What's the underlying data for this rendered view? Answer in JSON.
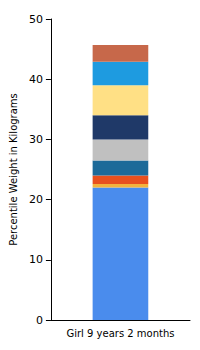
{
  "chart_data": {
    "type": "bar",
    "stacked": true,
    "y_label": "Percentile Weight in Kilograms",
    "categories": [
      "Girl 9 years 2 months"
    ],
    "series": [
      {
        "color": "#4a8ced",
        "values": [
          22
        ]
      },
      {
        "color": "#f2b33d",
        "values": [
          0.6
        ]
      },
      {
        "color": "#e8501e",
        "values": [
          1.4
        ]
      },
      {
        "color": "#1c6a99",
        "values": [
          2.5
        ]
      },
      {
        "color": "#c0c0c0",
        "values": [
          3.5
        ]
      },
      {
        "color": "#1f3968",
        "values": [
          4
        ]
      },
      {
        "color": "#ffe085",
        "values": [
          5
        ]
      },
      {
        "color": "#1e9be0",
        "values": [
          3.9
        ]
      },
      {
        "color": "#c7684a",
        "values": [
          2.8
        ]
      }
    ],
    "ylim": [
      0,
      50
    ],
    "yticks": [
      0,
      10,
      20,
      30,
      40,
      50
    ],
    "grid": false
  }
}
